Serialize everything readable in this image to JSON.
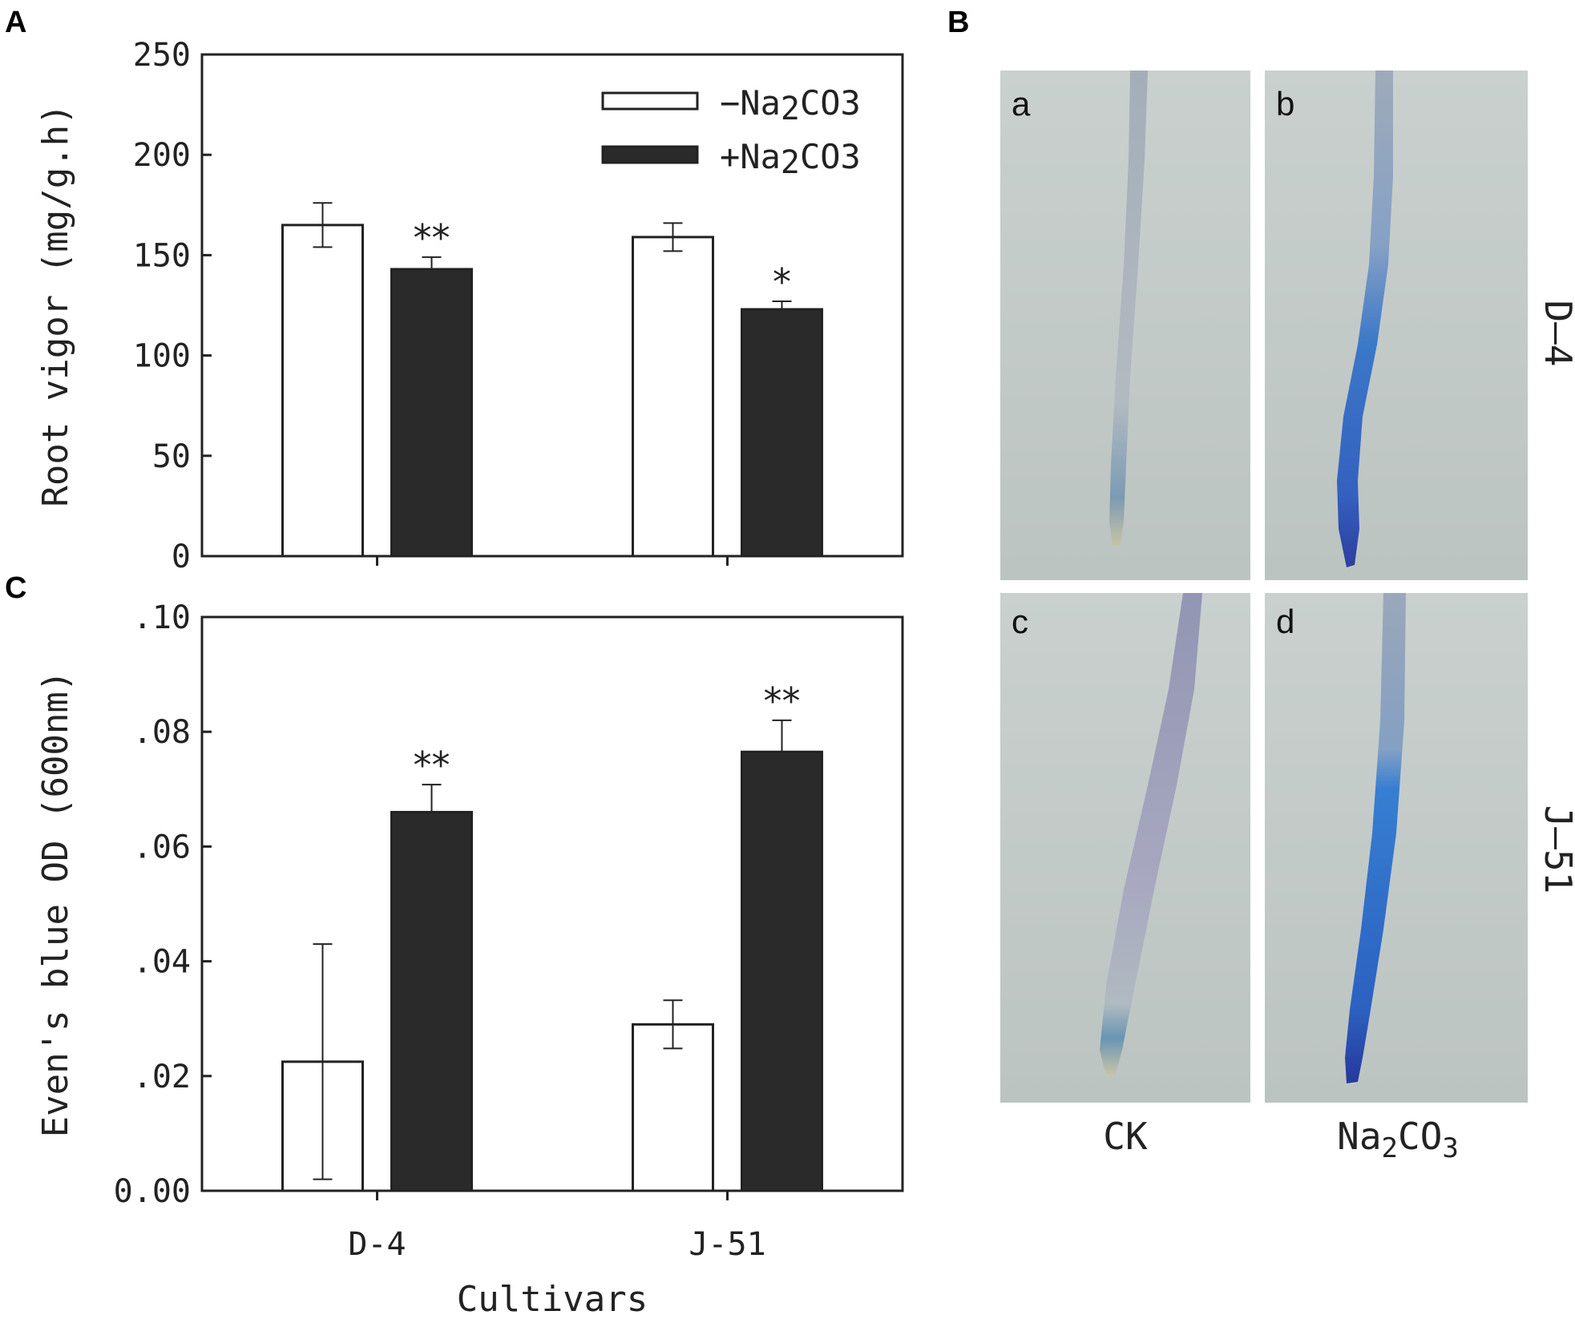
{
  "panel_letters": {
    "a": "A",
    "b": "B",
    "c": "C"
  },
  "legend": {
    "minus_prefix": "−Na",
    "minus_sub": "2",
    "minus_suffix": "CO3",
    "plus_prefix": "+Na",
    "plus_sub": "2",
    "plus_suffix": "CO3"
  },
  "colors": {
    "minus_fill": "#ffffff",
    "plus_fill": "#2a2a2a",
    "axis": "#222222"
  },
  "chart_data": [
    {
      "type": "bar",
      "panel": "A",
      "categories": [
        "D-4",
        "J-51"
      ],
      "series": [
        {
          "name": "−Na2CO3",
          "values": [
            165,
            159
          ],
          "errors": [
            11,
            7
          ],
          "significance": [
            "",
            ""
          ]
        },
        {
          "name": "+Na2CO3",
          "values": [
            143,
            123
          ],
          "errors": [
            6,
            4
          ],
          "significance": [
            "**",
            "*"
          ]
        }
      ],
      "ylabel": "Root vigor (mg/g.h)",
      "ylim": [
        0,
        250
      ],
      "yticks": [
        0,
        50,
        100,
        150,
        200,
        250
      ],
      "ytick_labels": [
        "0",
        "50",
        "100",
        "150",
        "200",
        "250"
      ],
      "legend_position": "top-right"
    },
    {
      "type": "bar",
      "panel": "C",
      "categories": [
        "D-4",
        "J-51"
      ],
      "series": [
        {
          "name": "−Na2CO3",
          "values": [
            0.0225,
            0.029
          ],
          "errors": [
            0.0205,
            0.0042
          ],
          "significance": [
            "",
            ""
          ]
        },
        {
          "name": "+Na2CO3",
          "values": [
            0.066,
            0.0765
          ],
          "errors": [
            0.0048,
            0.0055
          ],
          "significance": [
            "**",
            "**"
          ]
        }
      ],
      "xlabel": "Cultivars",
      "ylabel": "Even's blue OD (600nm)",
      "ylim": [
        0,
        0.1
      ],
      "yticks": [
        0,
        0.02,
        0.04,
        0.06,
        0.08,
        0.1
      ],
      "ytick_labels": [
        "0.00",
        ".02",
        ".04",
        ".06",
        ".08",
        ".10"
      ]
    }
  ],
  "photos": {
    "letters": [
      "a",
      "b",
      "c",
      "d"
    ],
    "row_labels": [
      "D–4",
      "J–51"
    ],
    "col_label_ck": "CK",
    "col_label_na_prefix": "Na",
    "col_label_na_sub1": "2",
    "col_label_na_mid": "CO",
    "col_label_na_sub2": "3"
  }
}
